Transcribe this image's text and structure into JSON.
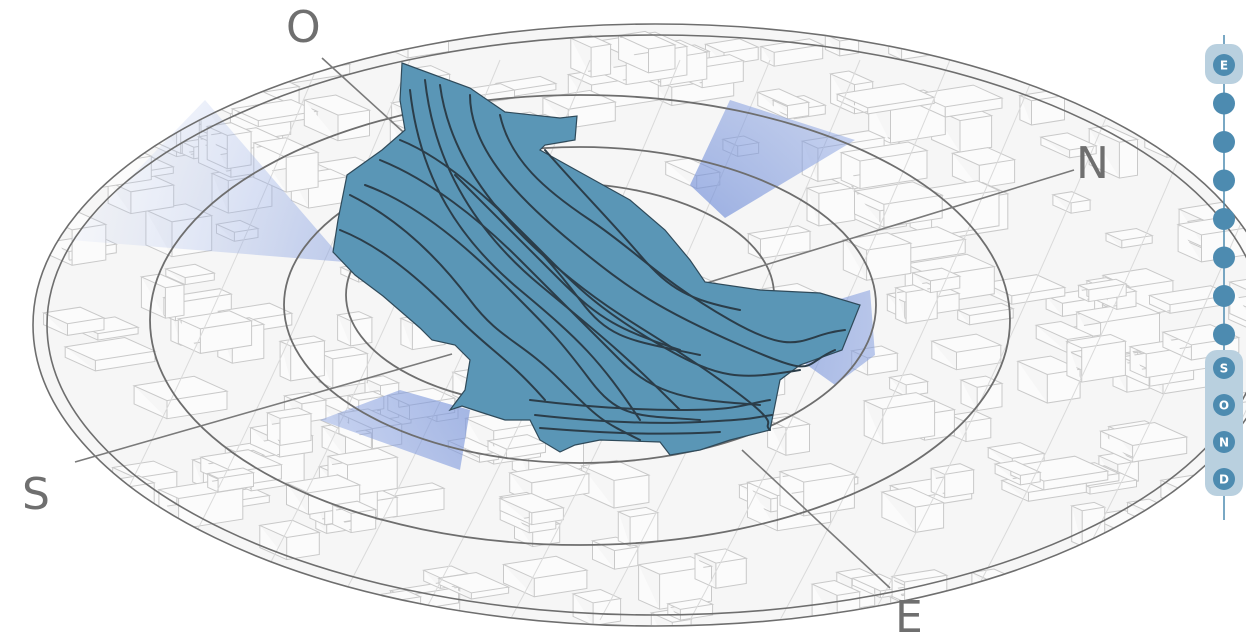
{
  "compass": {
    "north": "N",
    "south": "S",
    "east": "E",
    "west": "O"
  },
  "timeline": {
    "groups": [
      {
        "id": "top",
        "labels": [
          "E",
          "",
          "",
          "",
          "",
          "",
          "",
          ""
        ]
      },
      {
        "id": "bottom",
        "labels": [
          "S",
          "O",
          "N",
          "D"
        ]
      }
    ]
  },
  "colors": {
    "terrain": "#5a96b6",
    "contour": "#2b3d49",
    "ring": "#6e6e6e",
    "sun_sector": "#5f7fd1",
    "timeline_dot": "#4d8bb0",
    "timeline_group": "#b9d0df",
    "timeline_line": "#4d8bb0",
    "building_line": "#c7c7c7"
  },
  "icons": {
    "timeline_marker": "circle-dot-icon"
  }
}
